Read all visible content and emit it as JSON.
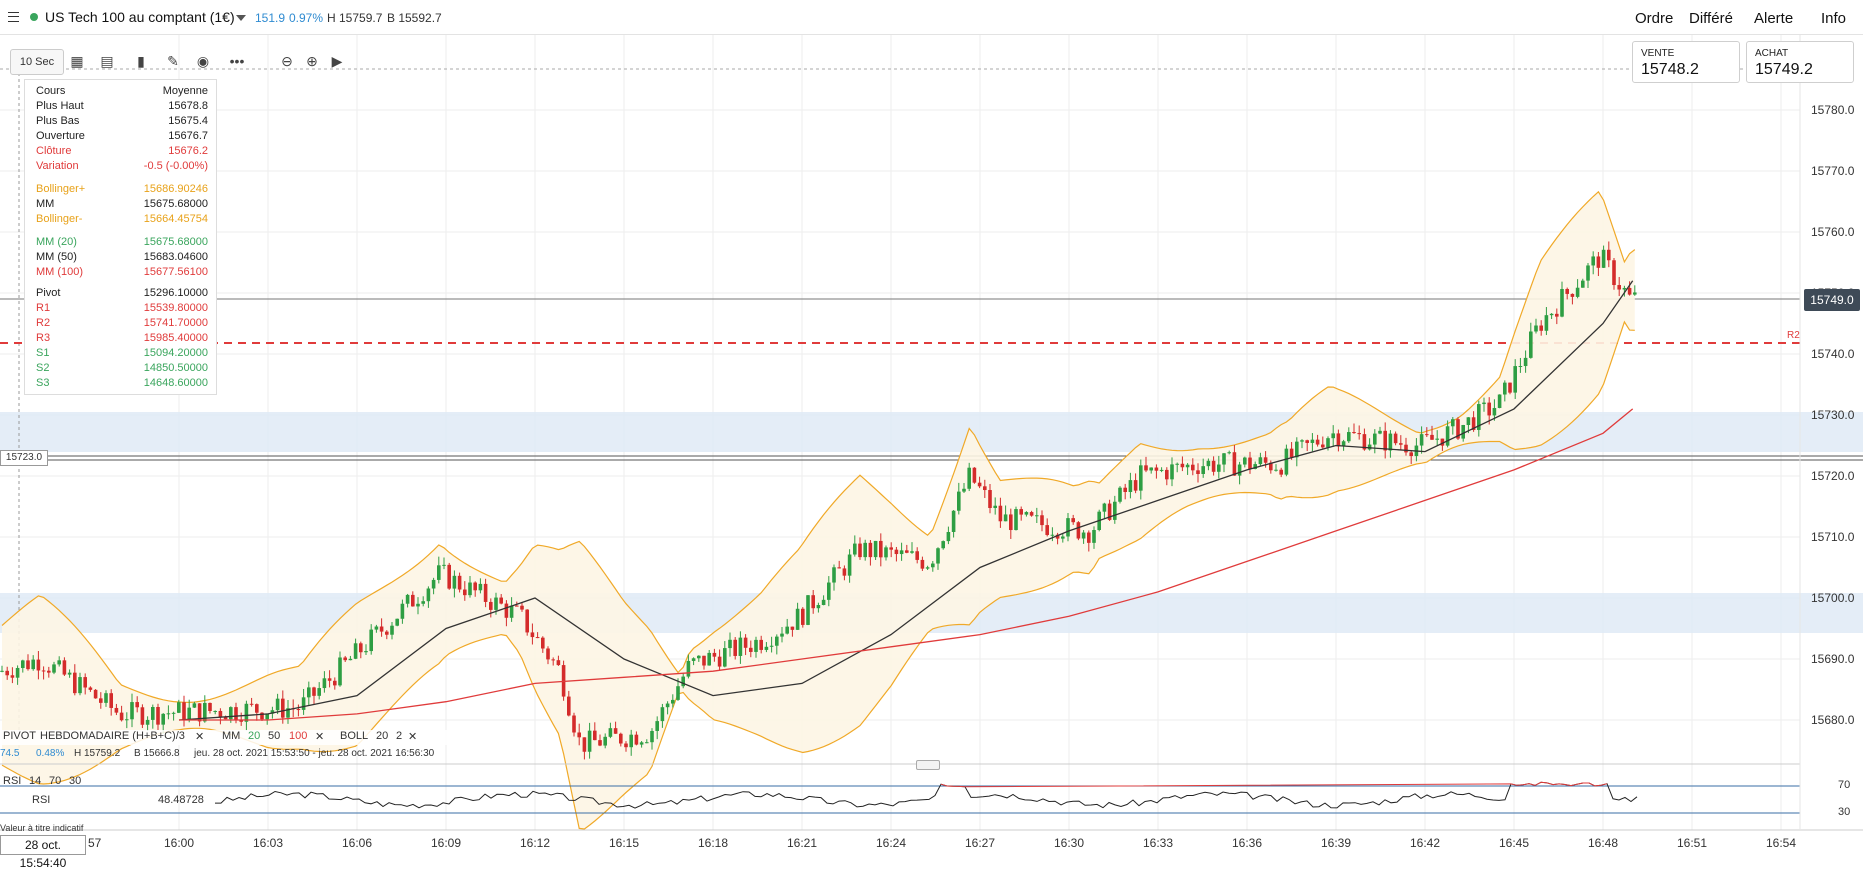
{
  "header": {
    "instrument": "US Tech 100 au comptant (1€)",
    "change_points": "151.9",
    "change_pct": "0.97%",
    "high": "H 15759.7",
    "low": "B 15592.7",
    "menu": [
      "Ordre",
      "Différé",
      "Alerte",
      "Info"
    ]
  },
  "toolbar": {
    "timeframe": "10 Sec"
  },
  "prices": {
    "sell_label": "VENTE",
    "sell": "15748.2",
    "buy_label": "ACHAT",
    "buy": "15749.2",
    "current": "15749.0",
    "marker": "15723.0",
    "r2_label": "R2"
  },
  "infobox": {
    "rows": [
      {
        "k": "Cours",
        "v": "Moyenne",
        "c": "dark"
      },
      {
        "k": "Plus Haut",
        "v": "15678.8",
        "c": "dark"
      },
      {
        "k": "Plus Bas",
        "v": "15675.4",
        "c": "dark"
      },
      {
        "k": "Ouverture",
        "v": "15676.7",
        "c": "dark"
      },
      {
        "k": "Clôture",
        "v": "15676.2",
        "c": "red"
      },
      {
        "k": "Variation",
        "v": "-0.5 (-0.00%)",
        "c": "red"
      },
      {
        "k": "Bollinger+",
        "v": "15686.90246",
        "c": "orange"
      },
      {
        "k": "MM",
        "v": "15675.68000",
        "c": "dark"
      },
      {
        "k": "Bollinger-",
        "v": "15664.45754",
        "c": "orange"
      },
      {
        "k": "MM (20)",
        "v": "15675.68000",
        "c": "green"
      },
      {
        "k": "MM (50)",
        "v": "15683.04600",
        "c": "dark"
      },
      {
        "k": "MM (100)",
        "v": "15677.56100",
        "c": "red"
      },
      {
        "k": "Pivot",
        "v": "15296.10000",
        "c": "dark"
      },
      {
        "k": "R1",
        "v": "15539.80000",
        "c": "red"
      },
      {
        "k": "R2",
        "v": "15741.70000",
        "c": "red"
      },
      {
        "k": "R3",
        "v": "15985.40000",
        "c": "red"
      },
      {
        "k": "S1",
        "v": "15094.20000",
        "c": "green"
      },
      {
        "k": "S2",
        "v": "14850.50000",
        "c": "green"
      },
      {
        "k": "S3",
        "v": "14648.60000",
        "c": "green"
      }
    ]
  },
  "legend": {
    "pivot": "PIVOT",
    "pivot_params": "HEBDOMADAIRE (H+B+C)/3",
    "mm": "MM",
    "mm_p1": "20",
    "mm_p2": "50",
    "mm_p3": "100",
    "boll": "BOLL",
    "boll_p1": "20",
    "boll_p2": "2",
    "close_mark": "✕"
  },
  "stats": {
    "left": "74.5",
    "pct": "0.48%",
    "high": "H 15759.2",
    "low": "B 15666.8",
    "range": "jeu. 28 oct. 2021 15:53:50 - jeu. 28 oct. 2021 16:56:30"
  },
  "rsi": {
    "name": "RSI",
    "p1": "14",
    "p2": "70",
    "p3": "30",
    "label": "RSI",
    "value": "48.48728",
    "upper": "70",
    "lower": "30",
    "note": "Valeur à titre indicatif"
  },
  "time": {
    "cursor": "28 oct. 15:54:40",
    "partial": "57",
    "ticks": [
      "16:00",
      "16:03",
      "16:06",
      "16:09",
      "16:12",
      "16:15",
      "16:18",
      "16:21",
      "16:24",
      "16:27",
      "16:30",
      "16:33",
      "16:36",
      "16:39",
      "16:42",
      "16:45",
      "16:48",
      "16:51",
      "16:54"
    ]
  },
  "yaxis": {
    "ticks": [
      "15780.0",
      "15770.0",
      "15760.0",
      "15750.0",
      "15740.0",
      "15730.0",
      "15720.0",
      "15710.0",
      "15700.0",
      "15690.0",
      "15680.0"
    ]
  },
  "chart_data": {
    "type": "line",
    "series": [
      {
        "name": "MM (20)",
        "color": "#333333",
        "x": [
          "16:00",
          "16:03",
          "16:06",
          "16:09",
          "16:12",
          "16:15",
          "16:18",
          "16:21",
          "16:24",
          "16:27",
          "16:30",
          "16:33",
          "16:36",
          "16:39",
          "16:42",
          "16:45",
          "16:48",
          "16:49"
        ],
        "y": [
          15680,
          15681,
          15684,
          15695,
          15700,
          15690,
          15684,
          15686,
          15694,
          15705,
          15711,
          15716,
          15721,
          15725,
          15724,
          15731,
          15745,
          15752
        ]
      },
      {
        "name": "MM (100)",
        "color": "#e03b3b",
        "x": [
          "16:00",
          "16:03",
          "16:06",
          "16:09",
          "16:12",
          "16:15",
          "16:18",
          "16:21",
          "16:24",
          "16:27",
          "16:30",
          "16:33",
          "16:36",
          "16:39",
          "16:42",
          "16:45",
          "16:48",
          "16:49"
        ],
        "y": [
          15680,
          15680,
          15681,
          15683,
          15686,
          15687,
          15688,
          15690,
          15692,
          15694,
          15697,
          15701,
          15706,
          15711,
          15716,
          15721,
          15727,
          15731
        ]
      }
    ],
    "y_range": [
      15677,
      15787
    ]
  }
}
